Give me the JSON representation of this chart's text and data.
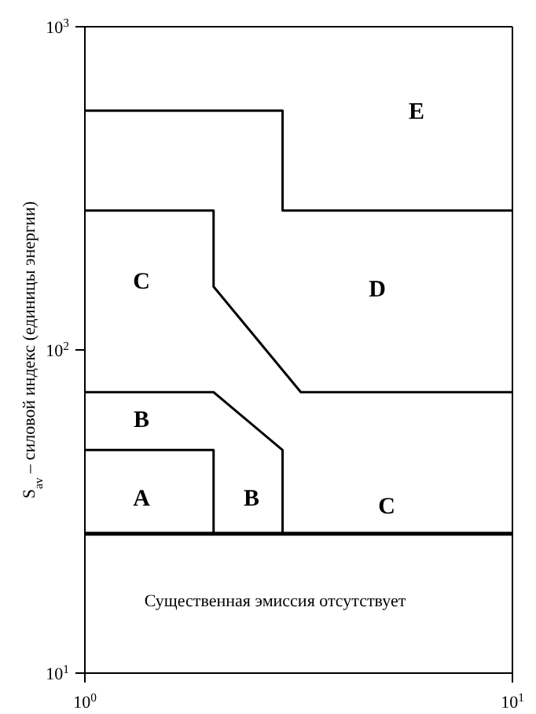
{
  "chart_data": {
    "type": "line",
    "ylabel": "S$_{av}$ – силовой индекс (единицы энергии)",
    "log": "xy",
    "xlim": [
      1,
      10
    ],
    "ylim": [
      10,
      1000
    ],
    "xticks": [
      {
        "value": 1,
        "label": "10$^{0}$"
      },
      {
        "value": 10,
        "label": "10$^{1}$"
      }
    ],
    "yticks": [
      {
        "value": 10,
        "label": "10$^{1}$"
      },
      {
        "value": 100,
        "label": "10$^{2}$"
      },
      {
        "value": 1000,
        "label": "10$^{3}$"
      }
    ],
    "marker": "none",
    "line_style": "solid",
    "series": [
      {
        "color": "#000000",
        "x": [
          1,
          10
        ],
        "values": [
          27,
          27
        ]
      },
      {
        "color": "#000000",
        "x": [
          1,
          2,
          2
        ],
        "values": [
          49,
          49,
          27
        ]
      },
      {
        "color": "#000000",
        "x": [
          1,
          2,
          2.9,
          2.9
        ],
        "values": [
          74,
          74,
          49,
          27
        ]
      },
      {
        "color": "#000000",
        "x": [
          1,
          2,
          2,
          3.2,
          10
        ],
        "values": [
          270,
          270,
          157,
          74,
          74
        ]
      },
      {
        "color": "#000000",
        "x": [
          1,
          2.9,
          2.9,
          10
        ],
        "values": [
          550,
          550,
          270,
          270
        ]
      }
    ],
    "annotations": [
      "E",
      "C",
      "D",
      "B",
      "A",
      "B",
      "C",
      "Существенная эмиссия отсутствует"
    ]
  }
}
